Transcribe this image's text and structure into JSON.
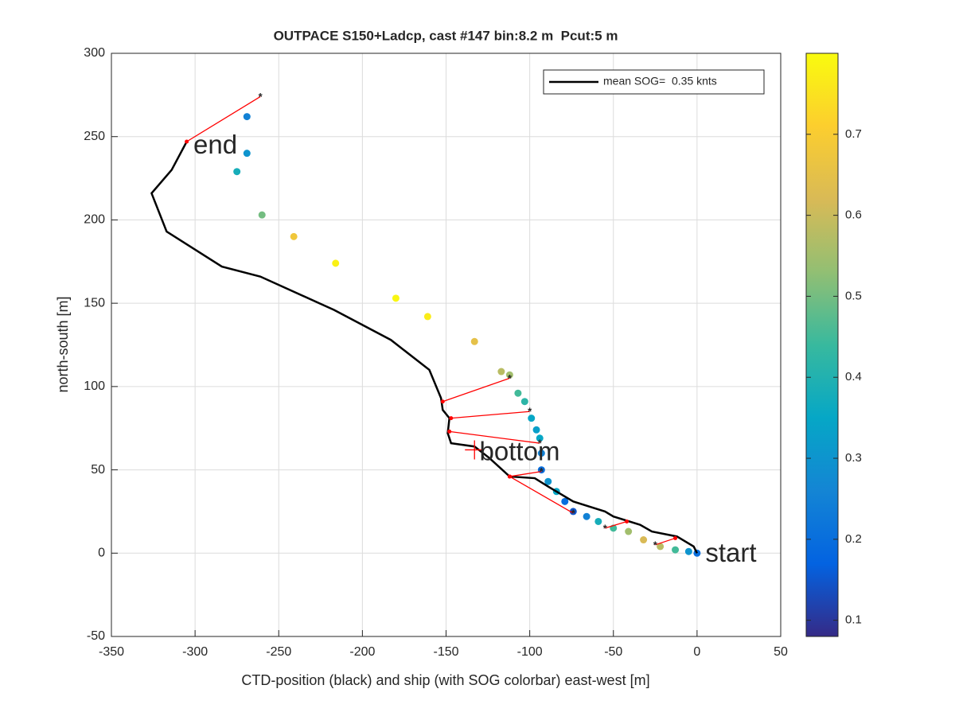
{
  "chart_data": {
    "type": "scatter",
    "title": "OUTPACE S150+Ladcp, cast #147 bin:8.2 m  Pcut:5 m",
    "xlabel": "CTD-position (black) and ship (with SOG colorbar) east-west [m]",
    "ylabel": "north-south [m]",
    "xlim": [
      -350,
      50
    ],
    "ylim": [
      -50,
      300
    ],
    "xticks": [
      -350,
      -300,
      -250,
      -200,
      -150,
      -100,
      -50,
      0,
      50
    ],
    "yticks": [
      -50,
      0,
      50,
      100,
      150,
      200,
      250,
      300
    ],
    "grid": true,
    "legend": "top-right",
    "series": [
      {
        "name": "mean SOG=  0.35 knts",
        "color": "#000000",
        "x": [
          0,
          -2,
          -12,
          -27,
          -34,
          -50,
          -55,
          -74,
          -89,
          -97,
          -112,
          -124,
          -133,
          -147,
          -149,
          -148,
          -152,
          -153,
          -160,
          -183,
          -217,
          -261,
          -284,
          -317,
          -326,
          -314,
          -305
        ],
        "values": [
          0,
          4,
          10,
          13,
          17,
          22,
          25,
          31,
          40,
          45,
          46,
          57,
          64,
          66,
          72,
          81,
          86,
          93,
          110,
          128,
          146,
          166,
          172,
          193,
          216,
          230,
          247
        ]
      }
    ],
    "ship": {
      "x": [
        -269,
        -269,
        -275,
        -260,
        -241,
        -216,
        -180,
        -161,
        -133,
        -117,
        -112,
        -107,
        -103,
        -99,
        -96,
        -94,
        -93,
        -93,
        -89,
        -84,
        -79,
        -74,
        -66,
        -59,
        -50,
        -41,
        -32,
        -22,
        -13,
        -5,
        0
      ],
      "values": [
        262,
        240,
        229,
        203,
        190,
        174,
        153,
        142,
        127,
        109,
        107,
        96,
        91,
        81,
        74,
        69,
        60,
        50,
        43,
        37,
        31,
        25,
        22,
        19,
        15,
        13,
        8,
        4,
        2,
        1,
        0
      ],
      "sog": [
        0.25,
        0.3,
        0.38,
        0.5,
        0.68,
        0.78,
        0.79,
        0.77,
        0.65,
        0.58,
        0.55,
        0.45,
        0.42,
        0.35,
        0.33,
        0.35,
        0.25,
        0.2,
        0.3,
        0.35,
        0.2,
        0.15,
        0.25,
        0.38,
        0.45,
        0.55,
        0.62,
        0.58,
        0.45,
        0.3,
        0.2
      ]
    },
    "links": {
      "color": "#ff0000",
      "x0": [
        -305,
        -152,
        -147,
        -148,
        -112,
        -112,
        -42,
        -13
      ],
      "y0": [
        247,
        91,
        81,
        73,
        46,
        46,
        19,
        9
      ],
      "x1": [
        -261,
        -112,
        -100,
        -94,
        -93,
        -74,
        -55,
        -25
      ],
      "y1": [
        274,
        105,
        85,
        66,
        49,
        24,
        15,
        5
      ]
    },
    "annotations": [
      {
        "text": "end",
        "x": -301,
        "y": 244
      },
      {
        "text": "bottom",
        "x": -130,
        "y": 60
      },
      {
        "text": "start",
        "x": 5,
        "y": -1
      }
    ],
    "bottom_marker": {
      "x": -133,
      "y": 62
    },
    "clim": [
      0.08,
      0.8
    ],
    "cticks": [
      0.1,
      0.2,
      0.3,
      0.4,
      0.5,
      0.6,
      0.7
    ],
    "colormap": [
      "#352a87",
      "#0363e1",
      "#1485d4",
      "#06a7c6",
      "#38b99e",
      "#92bf73",
      "#d9ba56",
      "#fcce2e",
      "#f9fb0e"
    ]
  }
}
